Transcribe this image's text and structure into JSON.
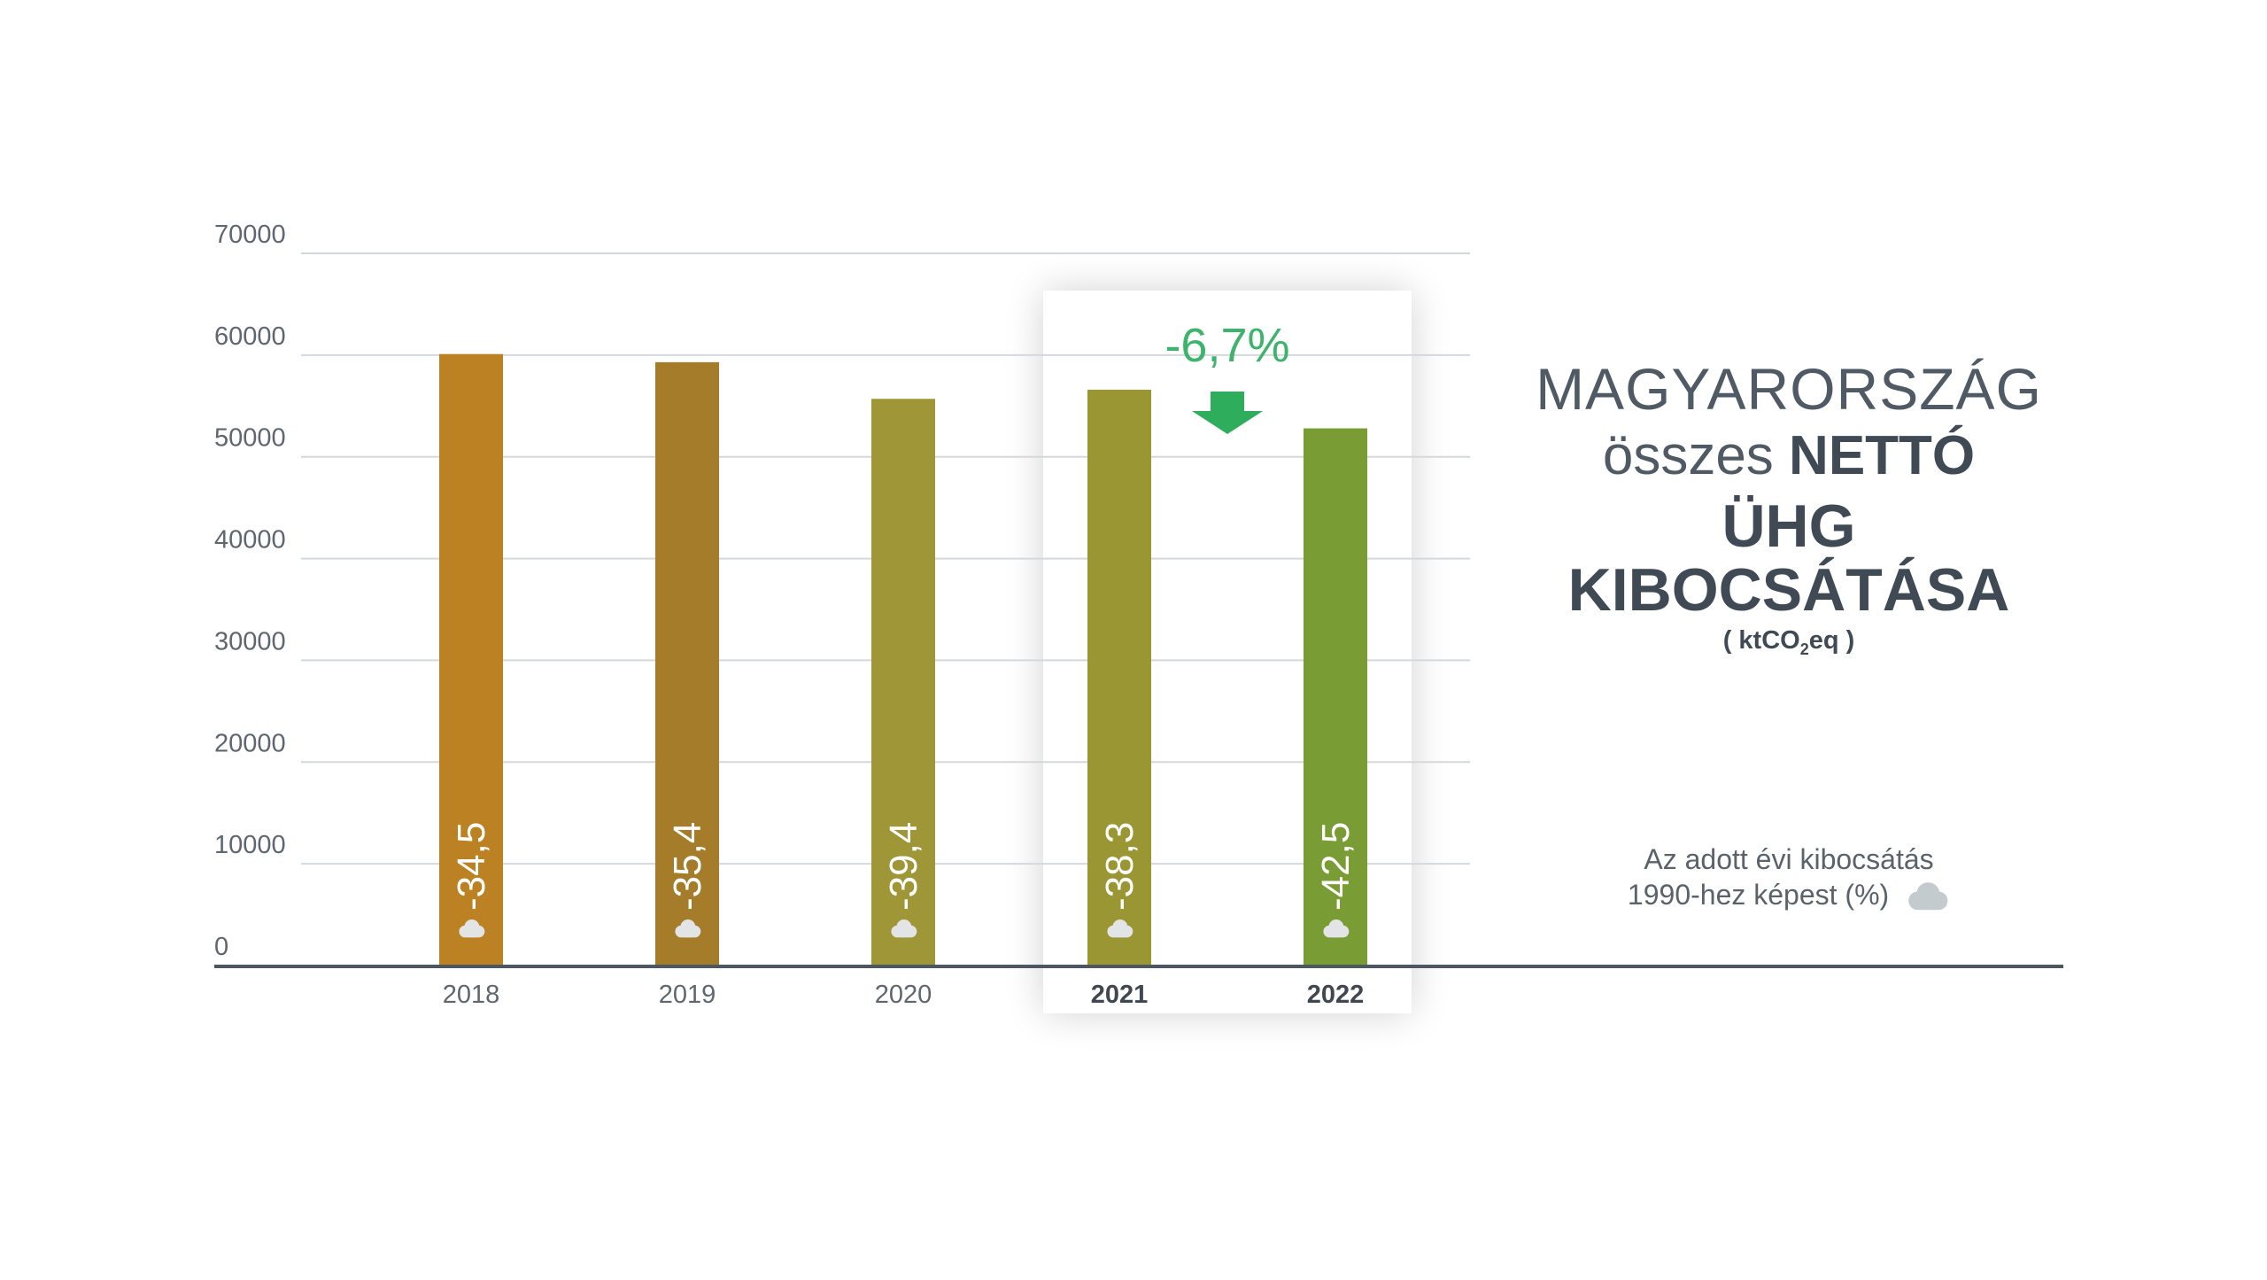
{
  "chart_data": {
    "type": "bar",
    "categories": [
      "2018",
      "2019",
      "2020",
      "2021",
      "2022"
    ],
    "values": [
      60100,
      59300,
      55700,
      56600,
      52800
    ],
    "bar_labels": [
      "-34,5",
      "-35,4",
      "-39,4",
      "-38,3",
      "-42,5"
    ],
    "bar_colors": [
      "#BC8122",
      "#A57C2A",
      "#9E9637",
      "#9A9634",
      "#7A9C35"
    ],
    "highlighted_categories": [
      "2021",
      "2022"
    ],
    "change_label": "-6,7%",
    "change_color": "#3DB36B",
    "arrow_color": "#2EAE5C",
    "y_ticks": [
      "0",
      "10000",
      "20000",
      "30000",
      "40000",
      "50000",
      "60000",
      "70000"
    ],
    "ylim": [
      0,
      70000
    ],
    "grid": true,
    "title": {
      "line1": "MAGYARORSZÁG",
      "line2_light": "összes",
      "line2_bold": "NETTÓ",
      "line3": "ÜHG KIBOCSÁTÁSA",
      "unit_pre": "( ktCO",
      "unit_sub": "2",
      "unit_post": "eq )"
    },
    "note": {
      "line1": "Az adott évi kibocsátás",
      "line2": "1990-hez képest (%)"
    },
    "icon": "cloud-icon"
  }
}
